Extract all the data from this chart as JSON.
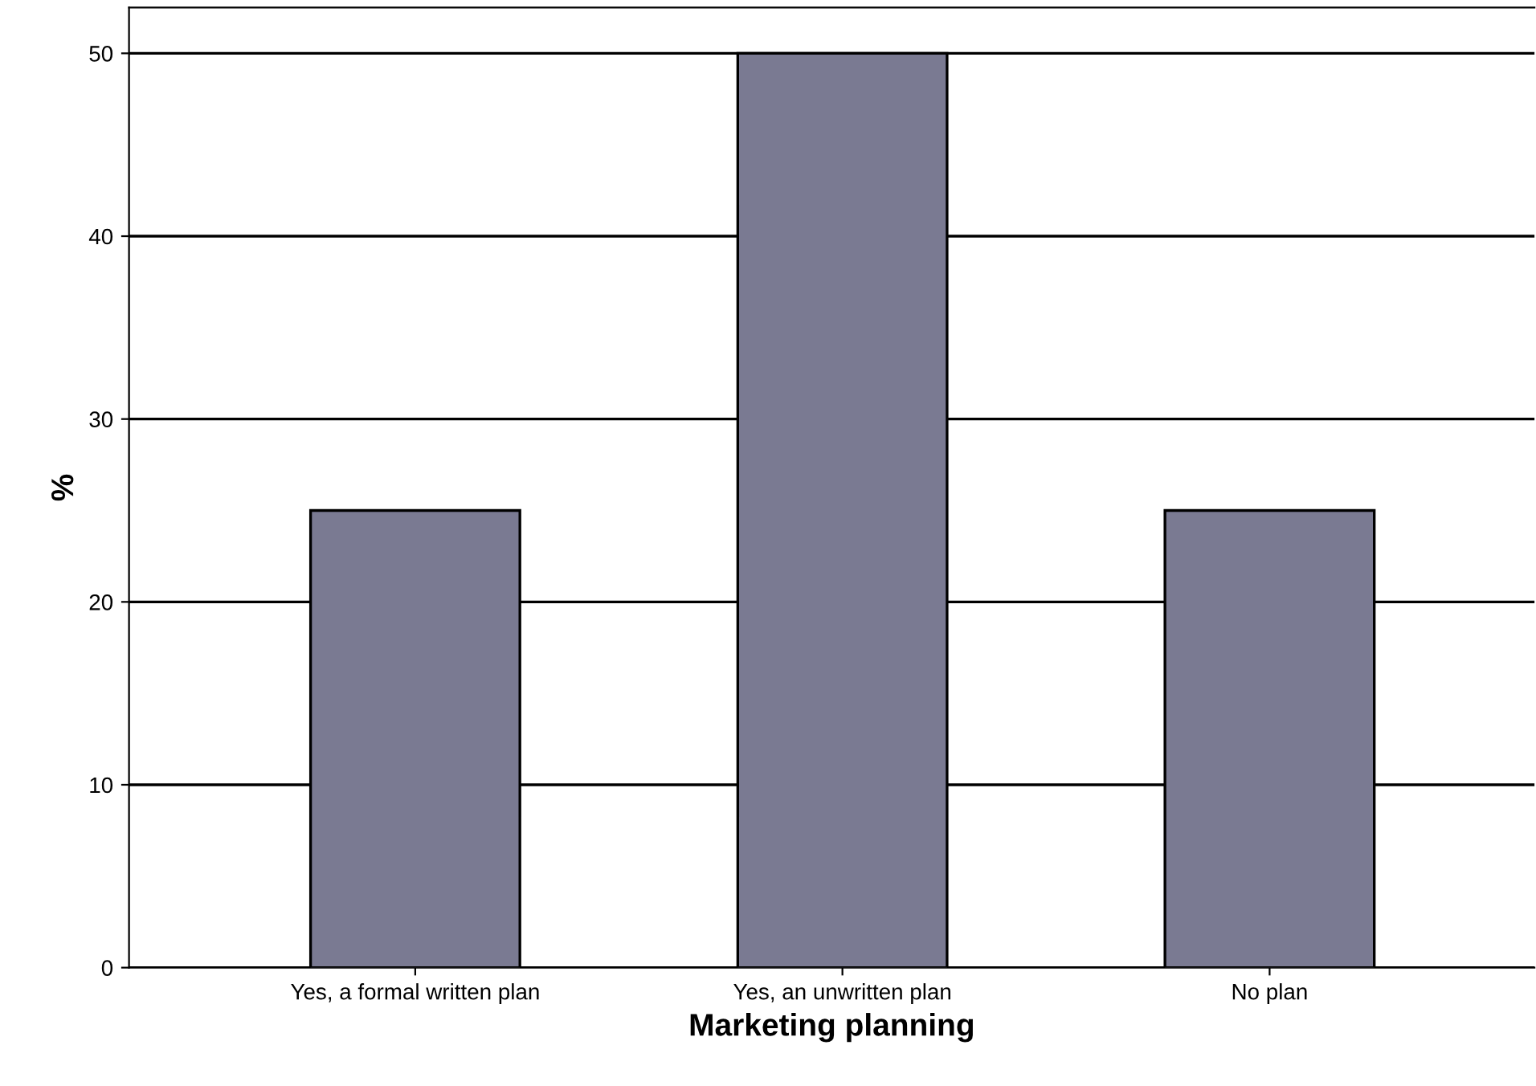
{
  "chart_data": {
    "type": "bar",
    "xlabel": "Marketing planning",
    "ylabel": "%",
    "categories": [
      "Yes, a formal written plan",
      "Yes, an unwritten plan",
      "No plan"
    ],
    "values": [
      25,
      50,
      25
    ],
    "color": "#7a7a92",
    "ylim": [
      0,
      52.5
    ],
    "yticks": [
      0,
      10,
      20,
      30,
      40,
      50
    ],
    "grid": "y",
    "legend": false
  }
}
